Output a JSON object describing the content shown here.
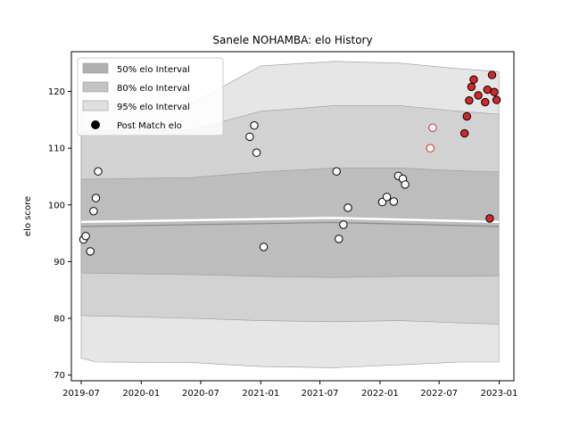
{
  "chart_data": {
    "type": "scatter",
    "title": "Sanele NOHAMBA: elo History",
    "xlabel": "",
    "ylabel": "elo score",
    "xlim": [
      "2019-06-01",
      "2023-02-15"
    ],
    "ylim": [
      69,
      127
    ],
    "x_ticks": [
      "2019-07-01",
      "2020-01-01",
      "2020-07-01",
      "2021-01-01",
      "2021-07-01",
      "2022-01-01",
      "2022-07-01",
      "2023-01-01"
    ],
    "x_tick_labels": [
      "2019-07",
      "2020-01",
      "2020-07",
      "2021-01",
      "2021-07",
      "2022-01",
      "2022-07",
      "2023-01"
    ],
    "y_ticks": [
      70,
      80,
      90,
      100,
      110,
      120
    ],
    "grid": false,
    "legend_position": "upper-left",
    "legend": [
      {
        "label": "50% elo Interval",
        "kind": "band",
        "color": "#aaaaaa"
      },
      {
        "label": "80% elo Interval",
        "kind": "band",
        "color": "#bcbcbc"
      },
      {
        "label": "95% elo Interval",
        "kind": "band",
        "color": "#dddddd"
      },
      {
        "label": "Post Match elo",
        "kind": "marker",
        "color": "#000000"
      }
    ],
    "mean_line": [
      {
        "x": "2019-07-01",
        "y": 97.0
      },
      {
        "x": "2021-01-01",
        "y": 97.5
      },
      {
        "x": "2021-08-01",
        "y": 97.7
      },
      {
        "x": "2022-06-01",
        "y": 97.3
      },
      {
        "x": "2022-12-31",
        "y": 97.0
      }
    ],
    "bands": [
      {
        "name": "95% elo Interval",
        "color": "#e3e3e3",
        "points": [
          {
            "x": "2019-07-01",
            "lo": 73.0,
            "hi": 117.0
          },
          {
            "x": "2019-08-15",
            "lo": 72.3,
            "hi": 117.8
          },
          {
            "x": "2020-06-01",
            "lo": 72.2,
            "hi": 117.8
          },
          {
            "x": "2021-01-01",
            "lo": 71.5,
            "hi": 124.5
          },
          {
            "x": "2021-08-15",
            "lo": 71.3,
            "hi": 125.3
          },
          {
            "x": "2022-03-01",
            "lo": 71.8,
            "hi": 125.0
          },
          {
            "x": "2022-09-01",
            "lo": 72.3,
            "hi": 124.0
          },
          {
            "x": "2022-12-31",
            "lo": 72.3,
            "hi": 123.5
          }
        ]
      },
      {
        "name": "80% elo Interval",
        "color": "#cfcfcf",
        "points": [
          {
            "x": "2019-07-01",
            "lo": 80.5,
            "hi": 113.0
          },
          {
            "x": "2020-06-01",
            "lo": 80.0,
            "hi": 113.2
          },
          {
            "x": "2021-01-01",
            "lo": 79.6,
            "hi": 116.5
          },
          {
            "x": "2021-08-15",
            "lo": 79.4,
            "hi": 117.5
          },
          {
            "x": "2022-03-01",
            "lo": 79.6,
            "hi": 117.5
          },
          {
            "x": "2022-09-01",
            "lo": 79.2,
            "hi": 116.5
          },
          {
            "x": "2022-12-31",
            "lo": 79.0,
            "hi": 116.0
          }
        ]
      },
      {
        "name": "50% elo Interval",
        "color": "#bababa",
        "points": [
          {
            "x": "2019-07-01",
            "lo": 88.0,
            "hi": 104.5
          },
          {
            "x": "2020-06-01",
            "lo": 87.7,
            "hi": 104.8
          },
          {
            "x": "2021-01-01",
            "lo": 87.4,
            "hi": 105.8
          },
          {
            "x": "2021-08-15",
            "lo": 87.2,
            "hi": 106.5
          },
          {
            "x": "2022-03-01",
            "lo": 87.4,
            "hi": 106.5
          },
          {
            "x": "2022-09-01",
            "lo": 87.4,
            "hi": 106.0
          },
          {
            "x": "2022-12-31",
            "lo": 87.5,
            "hi": 105.8
          }
        ]
      }
    ],
    "series": [
      {
        "name": "Post Match elo",
        "points": [
          {
            "x": "2019-07-08",
            "y": 93.9,
            "face": "#ffffff",
            "edge": "#000000"
          },
          {
            "x": "2019-07-15",
            "y": 94.5,
            "face": "#ffffff",
            "edge": "#000000"
          },
          {
            "x": "2019-07-29",
            "y": 91.8,
            "face": "#ffffff",
            "edge": "#000000"
          },
          {
            "x": "2019-08-08",
            "y": 98.9,
            "face": "#ffffff",
            "edge": "#000000"
          },
          {
            "x": "2019-08-15",
            "y": 101.2,
            "face": "#ffffff",
            "edge": "#000000"
          },
          {
            "x": "2019-08-22",
            "y": 105.9,
            "face": "#ffffff",
            "edge": "#000000"
          },
          {
            "x": "2020-11-28",
            "y": 112.0,
            "face": "#ffffff",
            "edge": "#000000"
          },
          {
            "x": "2020-12-12",
            "y": 114.0,
            "face": "#ffffff",
            "edge": "#000000"
          },
          {
            "x": "2020-12-19",
            "y": 109.2,
            "face": "#ffffff",
            "edge": "#000000"
          },
          {
            "x": "2021-01-10",
            "y": 92.6,
            "face": "#ffffff",
            "edge": "#000000"
          },
          {
            "x": "2021-08-21",
            "y": 105.9,
            "face": "#ffffff",
            "edge": "#000000"
          },
          {
            "x": "2021-08-28",
            "y": 94.0,
            "face": "#ffffff",
            "edge": "#000000"
          },
          {
            "x": "2021-09-11",
            "y": 96.5,
            "face": "#ffffff",
            "edge": "#000000"
          },
          {
            "x": "2021-09-25",
            "y": 99.5,
            "face": "#ffffff",
            "edge": "#000000"
          },
          {
            "x": "2022-01-08",
            "y": 100.5,
            "face": "#ffffff",
            "edge": "#000000"
          },
          {
            "x": "2022-01-22",
            "y": 101.4,
            "face": "#ffffff",
            "edge": "#000000"
          },
          {
            "x": "2022-02-12",
            "y": 100.6,
            "face": "#ffffff",
            "edge": "#000000"
          },
          {
            "x": "2022-02-26",
            "y": 105.1,
            "face": "#ffffff",
            "edge": "#000000"
          },
          {
            "x": "2022-03-12",
            "y": 104.6,
            "face": "#ffffff",
            "edge": "#000000"
          },
          {
            "x": "2022-03-19",
            "y": 103.6,
            "face": "#ffffff",
            "edge": "#000000"
          },
          {
            "x": "2022-06-04",
            "y": 110.0,
            "face": "#ffffff",
            "edge": "#d62728"
          },
          {
            "x": "2022-06-11",
            "y": 113.6,
            "face": "#ffffff",
            "edge": "#d62728"
          },
          {
            "x": "2022-09-17",
            "y": 112.6,
            "face": "#d62728",
            "edge": "#000000"
          },
          {
            "x": "2022-09-24",
            "y": 115.6,
            "face": "#d62728",
            "edge": "#000000"
          },
          {
            "x": "2022-10-01",
            "y": 118.4,
            "face": "#d62728",
            "edge": "#000000"
          },
          {
            "x": "2022-10-08",
            "y": 120.8,
            "face": "#d62728",
            "edge": "#000000"
          },
          {
            "x": "2022-10-15",
            "y": 122.1,
            "face": "#d62728",
            "edge": "#000000"
          },
          {
            "x": "2022-10-29",
            "y": 119.3,
            "face": "#d62728",
            "edge": "#000000"
          },
          {
            "x": "2022-11-19",
            "y": 118.1,
            "face": "#d62728",
            "edge": "#000000"
          },
          {
            "x": "2022-11-26",
            "y": 120.3,
            "face": "#d62728",
            "edge": "#000000"
          },
          {
            "x": "2022-12-03",
            "y": 97.6,
            "face": "#d62728",
            "edge": "#000000"
          },
          {
            "x": "2022-12-10",
            "y": 122.9,
            "face": "#d62728",
            "edge": "#000000"
          },
          {
            "x": "2022-12-17",
            "y": 119.9,
            "face": "#d62728",
            "edge": "#000000"
          },
          {
            "x": "2022-12-24",
            "y": 118.5,
            "face": "#d62728",
            "edge": "#000000"
          }
        ]
      }
    ]
  }
}
